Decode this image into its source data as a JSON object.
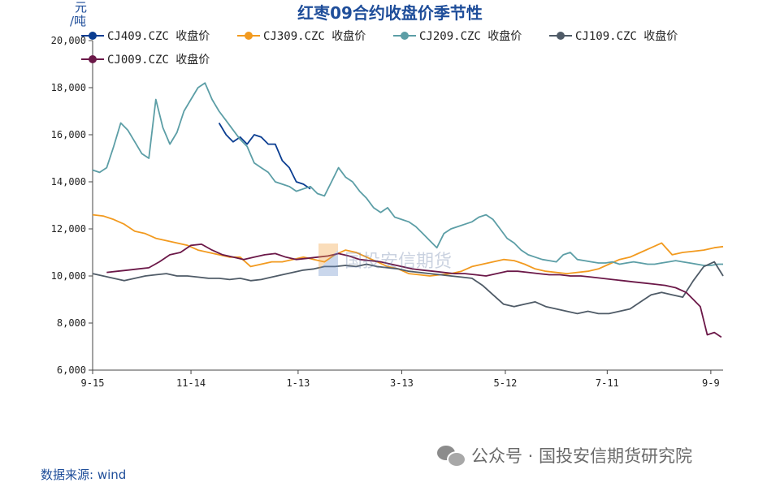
{
  "chart_data": {
    "type": "line",
    "title": "红枣09合约收盘价季节性",
    "ylabel_line1": "元",
    "ylabel_line2": "/吨",
    "ylim": [
      6000,
      20000
    ],
    "yticks": [
      6000,
      8000,
      10000,
      12000,
      14000,
      16000,
      18000,
      20000
    ],
    "ytick_labels": [
      "6,000",
      "8,000",
      "10,000",
      "12,000",
      "14,000",
      "16,000",
      "18,000",
      "20,000"
    ],
    "xlim": [
      0,
      359
    ],
    "xticks": [
      0,
      56,
      117,
      176,
      235,
      293,
      352
    ],
    "xtick_labels": [
      "9-15",
      "11-14",
      "1-13",
      "3-13",
      "5-12",
      "7-11",
      "9-9"
    ],
    "legend_position": "top",
    "series": [
      {
        "name": "CJ409.CZC 收盘价",
        "color": "#0a3d91",
        "x": [
          72,
          76,
          80,
          84,
          88,
          92,
          96,
          100,
          104,
          108,
          112,
          116,
          120,
          124
        ],
        "y": [
          16500,
          16000,
          15700,
          15900,
          15600,
          16000,
          15900,
          15600,
          15600,
          14900,
          14600,
          14000,
          13900,
          13700
        ]
      },
      {
        "name": "CJ309.CZC 收盘价",
        "color": "#f29a1f",
        "x": [
          0,
          6,
          12,
          18,
          24,
          30,
          36,
          42,
          48,
          54,
          60,
          66,
          72,
          78,
          84,
          90,
          96,
          102,
          108,
          114,
          120,
          126,
          132,
          138,
          144,
          150,
          156,
          162,
          168,
          174,
          180,
          186,
          192,
          198,
          204,
          210,
          216,
          222,
          228,
          234,
          240,
          246,
          252,
          258,
          264,
          270,
          276,
          282,
          288,
          294,
          300,
          306,
          312,
          318,
          324,
          330,
          336,
          342,
          348,
          354,
          359
        ],
        "y": [
          12600,
          12550,
          12400,
          12200,
          11900,
          11800,
          11600,
          11500,
          11400,
          11300,
          11100,
          11000,
          10900,
          10800,
          10800,
          10400,
          10500,
          10600,
          10600,
          10700,
          10800,
          10700,
          10600,
          10900,
          11100,
          11000,
          10800,
          10600,
          10400,
          10300,
          10100,
          10050,
          10000,
          10050,
          10100,
          10200,
          10400,
          10500,
          10600,
          10700,
          10650,
          10500,
          10300,
          10200,
          10150,
          10100,
          10150,
          10200,
          10300,
          10500,
          10700,
          10800,
          11000,
          11200,
          11400,
          10900,
          11000,
          11050,
          11100,
          11200,
          11250
        ]
      },
      {
        "name": "CJ209.CZC 收盘价",
        "color": "#5c9ea6",
        "x": [
          0,
          4,
          8,
          12,
          16,
          20,
          24,
          28,
          32,
          36,
          40,
          44,
          48,
          52,
          56,
          60,
          64,
          68,
          72,
          76,
          80,
          84,
          88,
          92,
          96,
          100,
          104,
          108,
          112,
          116,
          120,
          124,
          128,
          132,
          136,
          140,
          144,
          148,
          152,
          156,
          160,
          164,
          168,
          172,
          176,
          180,
          184,
          188,
          192,
          196,
          200,
          204,
          208,
          212,
          216,
          220,
          224,
          228,
          232,
          236,
          240,
          244,
          248,
          252,
          256,
          260,
          264,
          268,
          272,
          276,
          280,
          284,
          288,
          292,
          296,
          300,
          304,
          308,
          312,
          316,
          320,
          324,
          328,
          332,
          336,
          340,
          344,
          348,
          352,
          356,
          359
        ],
        "y": [
          14500,
          14400,
          14600,
          15500,
          16500,
          16200,
          15700,
          15200,
          15000,
          17500,
          16300,
          15600,
          16100,
          17000,
          17500,
          18000,
          18200,
          17500,
          17000,
          16600,
          16200,
          15800,
          15500,
          14800,
          14600,
          14400,
          14000,
          13900,
          13800,
          13600,
          13700,
          13800,
          13500,
          13400,
          14000,
          14600,
          14200,
          14000,
          13600,
          13300,
          12900,
          12700,
          12900,
          12500,
          12400,
          12300,
          12100,
          11800,
          11500,
          11200,
          11800,
          12000,
          12100,
          12200,
          12300,
          12500,
          12600,
          12400,
          12000,
          11600,
          11400,
          11100,
          10900,
          10800,
          10700,
          10650,
          10600,
          10900,
          11000,
          10700,
          10650,
          10600,
          10550,
          10550,
          10600,
          10500,
          10550,
          10600,
          10550,
          10500,
          10500,
          10550,
          10600,
          10650,
          10600,
          10550,
          10500,
          10450,
          10450,
          10500,
          10500
        ]
      },
      {
        "name": "CJ109.CZC 收盘价",
        "color": "#4f5b67",
        "x": [
          0,
          6,
          12,
          18,
          24,
          30,
          36,
          42,
          48,
          54,
          60,
          66,
          72,
          78,
          84,
          90,
          96,
          102,
          108,
          114,
          120,
          126,
          132,
          138,
          144,
          150,
          156,
          162,
          168,
          174,
          180,
          186,
          192,
          198,
          204,
          210,
          216,
          222,
          228,
          234,
          240,
          246,
          252,
          258,
          264,
          270,
          276,
          282,
          288,
          294,
          300,
          306,
          312,
          318,
          324,
          330,
          336,
          342,
          348,
          354,
          359
        ],
        "y": [
          10100,
          10000,
          9900,
          9800,
          9900,
          10000,
          10050,
          10100,
          10000,
          10000,
          9950,
          9900,
          9900,
          9850,
          9900,
          9800,
          9850,
          9950,
          10050,
          10150,
          10250,
          10300,
          10400,
          10400,
          10450,
          10400,
          10500,
          10400,
          10350,
          10300,
          10200,
          10150,
          10100,
          10050,
          10000,
          9950,
          9900,
          9600,
          9200,
          8800,
          8700,
          8800,
          8900,
          8700,
          8600,
          8500,
          8400,
          8500,
          8400,
          8400,
          8500,
          8600,
          8900,
          9200,
          9300,
          9200,
          9100,
          9800,
          10400,
          10600,
          10000
        ]
      },
      {
        "name": "CJ009.CZC 收盘价",
        "color": "#6b1848",
        "x": [
          8,
          14,
          20,
          26,
          32,
          38,
          44,
          50,
          56,
          62,
          68,
          74,
          80,
          86,
          92,
          98,
          104,
          110,
          116,
          122,
          128,
          134,
          140,
          146,
          152,
          158,
          164,
          170,
          176,
          182,
          188,
          194,
          200,
          206,
          212,
          218,
          224,
          230,
          236,
          242,
          248,
          254,
          260,
          266,
          272,
          278,
          284,
          290,
          296,
          302,
          308,
          314,
          320,
          326,
          332,
          338,
          342,
          346,
          350,
          354,
          358
        ],
        "y": [
          10150,
          10200,
          10250,
          10300,
          10350,
          10600,
          10900,
          11000,
          11300,
          11350,
          11100,
          10900,
          10800,
          10700,
          10800,
          10900,
          10950,
          10800,
          10700,
          10750,
          10800,
          10850,
          10950,
          10850,
          10700,
          10650,
          10600,
          10500,
          10400,
          10300,
          10250,
          10200,
          10150,
          10100,
          10100,
          10050,
          10000,
          10100,
          10200,
          10200,
          10150,
          10100,
          10050,
          10050,
          10000,
          10000,
          9950,
          9900,
          9850,
          9800,
          9750,
          9700,
          9650,
          9600,
          9500,
          9300,
          9000,
          8700,
          7500,
          7600,
          7400
        ]
      }
    ]
  },
  "source_text": "数据来源: wind",
  "footer_text": "公众号 · 国投安信期货研究院",
  "watermark_text": "国投安信期货",
  "icons": {
    "footer": "wechat-icon",
    "watermark": "company-logo"
  }
}
